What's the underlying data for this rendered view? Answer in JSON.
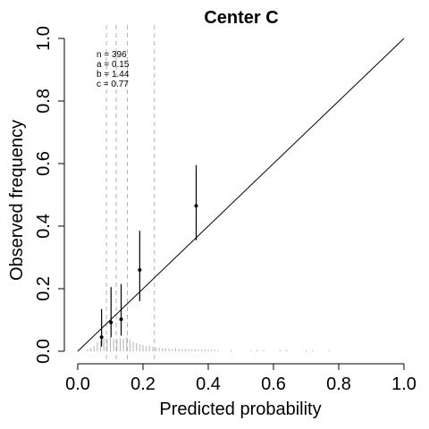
{
  "chart_data": {
    "type": "scatter",
    "title": "Center C",
    "xlabel": "Predicted probability",
    "ylabel": "Observed frequency",
    "xlim": [
      0.0,
      1.0
    ],
    "ylim": [
      0.0,
      1.0
    ],
    "x_ticks": [
      "0.0",
      "0.2",
      "0.4",
      "0.6",
      "0.8",
      "1.0"
    ],
    "y_ticks": [
      "0.0",
      "0.2",
      "0.4",
      "0.6",
      "0.8",
      "1.0"
    ],
    "reference_line": {
      "from": [
        0,
        0
      ],
      "to": [
        1,
        1
      ]
    },
    "stats": [
      "n = 396",
      "a = 0.15",
      "b = 1.44",
      "c = 0.77"
    ],
    "quantile_lines": [
      0.088,
      0.118,
      0.152,
      0.235
    ],
    "points": [
      {
        "x": 0.073,
        "y": 0.045,
        "lower": 0.015,
        "upper": 0.135
      },
      {
        "x": 0.102,
        "y": 0.092,
        "lower": 0.045,
        "upper": 0.205
      },
      {
        "x": 0.133,
        "y": 0.102,
        "lower": 0.05,
        "upper": 0.215
      },
      {
        "x": 0.19,
        "y": 0.26,
        "lower": 0.16,
        "upper": 0.385
      },
      {
        "x": 0.363,
        "y": 0.465,
        "lower": 0.355,
        "upper": 0.595
      }
    ],
    "rug": [
      {
        "x": 0.03,
        "h": 0.006
      },
      {
        "x": 0.04,
        "h": 0.01
      },
      {
        "x": 0.05,
        "h": 0.018
      },
      {
        "x": 0.06,
        "h": 0.028
      },
      {
        "x": 0.07,
        "h": 0.035
      },
      {
        "x": 0.08,
        "h": 0.04
      },
      {
        "x": 0.09,
        "h": 0.038
      },
      {
        "x": 0.1,
        "h": 0.045
      },
      {
        "x": 0.11,
        "h": 0.04
      },
      {
        "x": 0.12,
        "h": 0.036
      },
      {
        "x": 0.13,
        "h": 0.042
      },
      {
        "x": 0.14,
        "h": 0.04
      },
      {
        "x": 0.15,
        "h": 0.045
      },
      {
        "x": 0.16,
        "h": 0.038
      },
      {
        "x": 0.17,
        "h": 0.03
      },
      {
        "x": 0.18,
        "h": 0.026
      },
      {
        "x": 0.19,
        "h": 0.022
      },
      {
        "x": 0.2,
        "h": 0.02
      },
      {
        "x": 0.21,
        "h": 0.016
      },
      {
        "x": 0.22,
        "h": 0.018
      },
      {
        "x": 0.23,
        "h": 0.014
      },
      {
        "x": 0.24,
        "h": 0.012
      },
      {
        "x": 0.25,
        "h": 0.012
      },
      {
        "x": 0.26,
        "h": 0.01
      },
      {
        "x": 0.27,
        "h": 0.01
      },
      {
        "x": 0.28,
        "h": 0.009
      },
      {
        "x": 0.29,
        "h": 0.008
      },
      {
        "x": 0.3,
        "h": 0.01
      },
      {
        "x": 0.31,
        "h": 0.008
      },
      {
        "x": 0.32,
        "h": 0.007
      },
      {
        "x": 0.33,
        "h": 0.008
      },
      {
        "x": 0.34,
        "h": 0.006
      },
      {
        "x": 0.35,
        "h": 0.007
      },
      {
        "x": 0.36,
        "h": 0.006
      },
      {
        "x": 0.37,
        "h": 0.006
      },
      {
        "x": 0.38,
        "h": 0.005
      },
      {
        "x": 0.39,
        "h": 0.006
      },
      {
        "x": 0.4,
        "h": 0.005
      },
      {
        "x": 0.41,
        "h": 0.005
      },
      {
        "x": 0.42,
        "h": 0.005
      },
      {
        "x": 0.43,
        "h": 0.004
      },
      {
        "x": 0.47,
        "h": 0.004
      },
      {
        "x": 0.53,
        "h": 0.004
      },
      {
        "x": 0.55,
        "h": 0.004
      },
      {
        "x": 0.57,
        "h": 0.004
      },
      {
        "x": 0.62,
        "h": 0.004
      },
      {
        "x": 0.64,
        "h": 0.004
      },
      {
        "x": 0.7,
        "h": 0.004
      },
      {
        "x": 0.72,
        "h": 0.004
      },
      {
        "x": 0.77,
        "h": 0.004
      }
    ],
    "colors": {
      "point": "#000000",
      "reference_line": "#000000",
      "quantile_line": "#b3b3b3",
      "rug": "#b3b3b3"
    }
  }
}
